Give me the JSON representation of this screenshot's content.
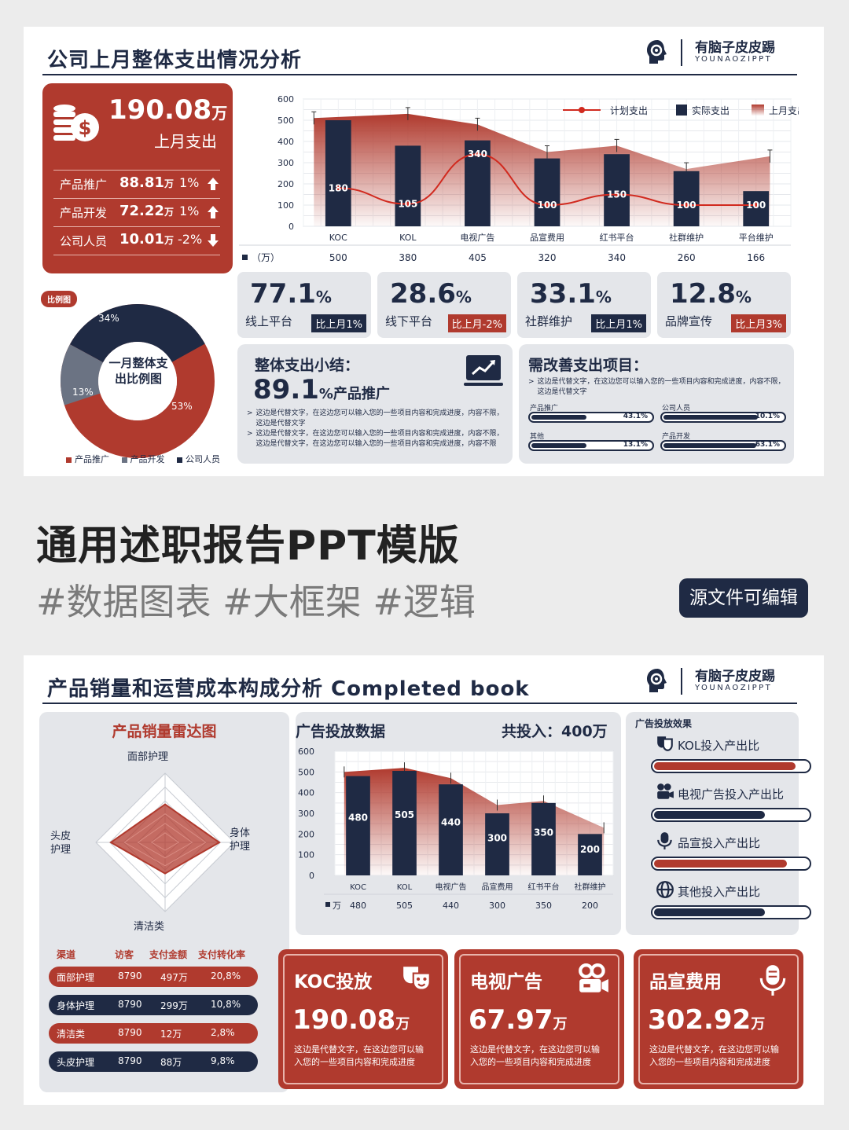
{
  "brand": {
    "name_cn": "有脑子皮皮踢",
    "name_en": "YOUNAOZIPPT"
  },
  "slide1": {
    "title": "公司上月整体支出情况分析",
    "summary": {
      "total_value": "190.08",
      "total_unit": "万",
      "total_label": "上月支出",
      "rows": [
        {
          "label": "产品推广",
          "value": "88.81",
          "unit": "万",
          "change": "1%",
          "dir": "up"
        },
        {
          "label": "产品开发",
          "value": "72.22",
          "unit": "万",
          "change": "1%",
          "dir": "up"
        },
        {
          "label": "公司人员",
          "value": "10.01",
          "unit": "万",
          "change": "-2%",
          "dir": "down"
        }
      ]
    },
    "donut": {
      "tag": "比例图",
      "center_line1": "一月整体支",
      "center_line2": "出比例图",
      "labels": [
        "34%",
        "13%",
        "53%"
      ],
      "legend": [
        "产品推广",
        "产品开发",
        "公司人员"
      ]
    },
    "kpis": [
      {
        "value": "77.1",
        "unit": "%",
        "label": "线上平台",
        "badge": "比上月1%",
        "badge_color": "navy"
      },
      {
        "value": "28.6",
        "unit": "%",
        "label": "线下平台",
        "badge": "比上月-2%",
        "badge_color": "red"
      },
      {
        "value": "33.1",
        "unit": "%",
        "label": "社群维护",
        "badge": "比上月1%",
        "badge_color": "navy"
      },
      {
        "value": "12.8",
        "unit": "%",
        "label": "品牌宣传",
        "badge": "比上月3%",
        "badge_color": "red"
      }
    ],
    "summary_box": {
      "title": "整体支出小结：",
      "value": "89.1",
      "value_suffix": "%产品推广",
      "notes": [
        "这边是代替文字，在这边您可以输入您的一些项目内容和完成进度，内容不限，这边是代替文字",
        "这边是代替文字，在这边您可以输入您的一些项目内容和完成进度，内容不限，这边是代替文字，在这边您可以输入您的一些项目内容和完成进度，内容不限"
      ]
    },
    "improve_box": {
      "title": "需改善支出项目：",
      "note": "这边是代替文字，在这边您可以输入您的一些项目内容和完成进度，内容不限，这边是代替文字",
      "bars": [
        {
          "label": "产品推广",
          "pct": "43.1%",
          "value": 43.1
        },
        {
          "label": "公司人员",
          "pct": "10.1%",
          "value": 10.1
        },
        {
          "label": "其他",
          "pct": "13.1%",
          "value": 13.1
        },
        {
          "label": "产品开发",
          "pct": "63.1%",
          "value": 63.1
        }
      ]
    }
  },
  "banner": {
    "title": "通用述职报告PPT模版",
    "tags": "#数据图表 #大框架 #逻辑",
    "button": "源文件可编辑"
  },
  "slide2": {
    "title": "产品销量和运营成本构成分析 Completed book",
    "radar": {
      "title": "产品销量雷达图",
      "axes": [
        "面部护理",
        "身体护理",
        "清洁类",
        "头皮护理"
      ],
      "axis_body_l1": "身体",
      "axis_body_l2": "护理",
      "axis_scalp_l1": "头皮",
      "axis_scalp_l2": "护理",
      "values": [
        0.55,
        0.7,
        0.45,
        0.7
      ]
    },
    "table": {
      "headers": [
        "渠道",
        "访客",
        "支付金额",
        "支付转化率"
      ],
      "rows": [
        {
          "c": "面部护理",
          "v": "8790",
          "a": "497万",
          "r": "20,8%",
          "color": "red"
        },
        {
          "c": "身体护理",
          "v": "8790",
          "a": "299万",
          "r": "10,8%",
          "color": "navy"
        },
        {
          "c": "清洁类",
          "v": "8790",
          "a": "12万",
          "r": "2,8%",
          "color": "red"
        },
        {
          "c": "头皮护理",
          "v": "8790",
          "a": "88万",
          "r": "9,8%",
          "color": "navy"
        }
      ]
    },
    "ad_chart": {
      "title": "广告投放数据",
      "total": "共投入：400万"
    },
    "effects": {
      "title": "广告投放效果",
      "items": [
        {
          "label": "KOL投入产出比",
          "value": 0.92,
          "color": "#b03a2e",
          "icon": "mask-icon"
        },
        {
          "label": "电视广告投入产出比",
          "value": 0.72,
          "color": "#1f2a44",
          "icon": "camera-icon"
        },
        {
          "label": "品宣投入产出比",
          "value": 0.86,
          "color": "#b03a2e",
          "icon": "microphone-icon"
        },
        {
          "label": "其他投入产出比",
          "value": 0.72,
          "color": "#1f2a44",
          "icon": "globe-icon"
        }
      ]
    },
    "cards": [
      {
        "title": "KOC投放",
        "value": "190.08",
        "unit": "万",
        "desc": "这边是代替文字，在这边您可以输入您的一些项目内容和完成进度"
      },
      {
        "title": "电视广告",
        "value": "67.97",
        "unit": "万",
        "desc": "这边是代替文字，在这边您可以输入您的一些项目内容和完成进度"
      },
      {
        "title": "品宣费用",
        "value": "302.92",
        "unit": "万",
        "desc": "这边是代替文字，在这边您可以输入您的一些项目内容和完成进度"
      }
    ]
  },
  "chart_data": [
    {
      "type": "bar",
      "categories": [
        "KOC",
        "KOL",
        "电视广告",
        "品宣费用",
        "红书平台",
        "社群维护",
        "平台维护"
      ],
      "series": [
        {
          "name": "计划支出",
          "kind": "line",
          "values": [
            180,
            105,
            340,
            100,
            150,
            100,
            100
          ]
        },
        {
          "name": "实际支出",
          "kind": "bar",
          "values": [
            500,
            380,
            405,
            320,
            340,
            260,
            166
          ]
        },
        {
          "name": "上月支出",
          "kind": "area",
          "values": [
            510,
            530,
            480,
            350,
            380,
            270,
            330
          ]
        }
      ],
      "bar_labels": [
        "180",
        "105",
        "340",
        "100",
        "150",
        "100",
        "100"
      ],
      "table_label": "（万）",
      "table_values": [
        "500",
        "380",
        "405",
        "320",
        "340",
        "260",
        "166"
      ],
      "yticks": [
        "600",
        "500",
        "400",
        "300",
        "200",
        "100",
        "0"
      ],
      "ylim": [
        0,
        600
      ],
      "legend_position": "top-right",
      "grid": true
    },
    {
      "type": "bar",
      "categories": [
        "KOC",
        "KOL",
        "电视广告",
        "品宣费用",
        "红书平台",
        "社群维护"
      ],
      "series": [
        {
          "kind": "bar",
          "values": [
            480,
            505,
            440,
            300,
            350,
            200
          ]
        },
        {
          "kind": "area",
          "values": [
            500,
            520,
            470,
            340,
            360,
            230
          ]
        }
      ],
      "bar_labels": [
        "480",
        "505",
        "440",
        "300",
        "350",
        "200"
      ],
      "table_label": "万",
      "table_values": [
        "480",
        "505",
        "440",
        "300",
        "350",
        "200"
      ],
      "yticks": [
        "600",
        "500",
        "400",
        "300",
        "200",
        "100",
        "0"
      ],
      "ylim": [
        0,
        600
      ],
      "grid": true
    }
  ],
  "colors": {
    "red": "#b03a2e",
    "navy": "#1f2a44",
    "gray": "#6b7383",
    "panel": "#e4e6ea"
  }
}
